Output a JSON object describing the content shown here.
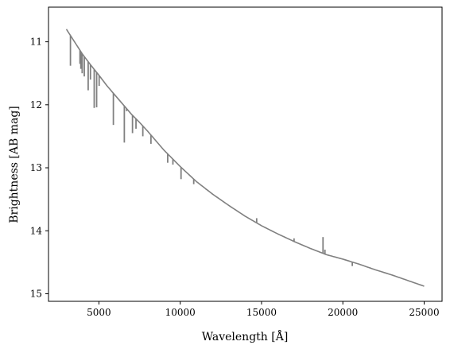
{
  "chart_data": {
    "type": "line",
    "title": "",
    "xlabel": "Wavelength [Å]",
    "ylabel": "Brightness [AB mag]",
    "xlim": [
      1900,
      26100
    ],
    "ylim": [
      15.12,
      10.45
    ],
    "y_inverted": true,
    "grid": false,
    "legend": "none",
    "line_color": "#808080",
    "x_ticks": [
      5000,
      10000,
      15000,
      20000,
      25000
    ],
    "x_tick_labels": [
      "5000",
      "10000",
      "15000",
      "20000",
      "25000"
    ],
    "y_ticks": [
      11,
      12,
      13,
      14,
      15
    ],
    "y_tick_labels": [
      "11",
      "12",
      "13",
      "14",
      "15"
    ],
    "series": [
      {
        "continuum": {
          "x": [
            3000,
            3500,
            4000,
            4500,
            5000,
            5500,
            6000,
            6500,
            7000,
            7500,
            8000,
            9000,
            10000,
            11000,
            12000,
            13000,
            14000,
            15000,
            16000,
            17000,
            18000,
            19000,
            20000,
            21000,
            22000,
            23000,
            24000,
            25000
          ],
          "y": [
            10.8,
            11.0,
            11.2,
            11.37,
            11.53,
            11.7,
            11.85,
            12.0,
            12.15,
            12.28,
            12.42,
            12.72,
            12.98,
            13.22,
            13.42,
            13.6,
            13.77,
            13.92,
            14.05,
            14.17,
            14.28,
            14.38,
            14.45,
            14.53,
            14.62,
            14.7,
            14.79,
            14.88
          ]
        },
        "absorption_lines": [
          {
            "x": 3250,
            "depth": 11.38
          },
          {
            "x": 3835,
            "depth": 11.35
          },
          {
            "x": 3890,
            "depth": 11.43
          },
          {
            "x": 3970,
            "depth": 11.5
          },
          {
            "x": 4100,
            "depth": 11.55
          },
          {
            "x": 4340,
            "depth": 11.77
          },
          {
            "x": 4480,
            "depth": 11.6
          },
          {
            "x": 4710,
            "depth": 12.05
          },
          {
            "x": 4860,
            "depth": 12.04
          },
          {
            "x": 5015,
            "depth": 11.7
          },
          {
            "x": 5890,
            "depth": 12.32
          },
          {
            "x": 6563,
            "depth": 12.6
          },
          {
            "x": 7065,
            "depth": 12.45
          },
          {
            "x": 7280,
            "depth": 12.38
          },
          {
            "x": 7700,
            "depth": 12.5
          },
          {
            "x": 8200,
            "depth": 12.62
          },
          {
            "x": 9230,
            "depth": 12.92
          },
          {
            "x": 9550,
            "depth": 12.95
          },
          {
            "x": 10050,
            "depth": 13.18
          },
          {
            "x": 10830,
            "depth": 13.26
          },
          {
            "x": 11600,
            "depth": 13.35
          },
          {
            "x": 12820,
            "depth": 13.57
          },
          {
            "x": 14700,
            "depth": 13.8
          },
          {
            "x": 17000,
            "depth": 14.12
          },
          {
            "x": 18760,
            "depth": 14.35
          },
          {
            "x": 18900,
            "depth": 14.3
          },
          {
            "x": 19450,
            "depth": 14.42
          },
          {
            "x": 20580,
            "depth": 14.56
          },
          {
            "x": 21660,
            "depth": 14.58
          }
        ],
        "emission_lines": [
          {
            "x": 6700,
            "peak": 12.1
          },
          {
            "x": 18780,
            "peak": 14.1
          }
        ]
      }
    ]
  }
}
